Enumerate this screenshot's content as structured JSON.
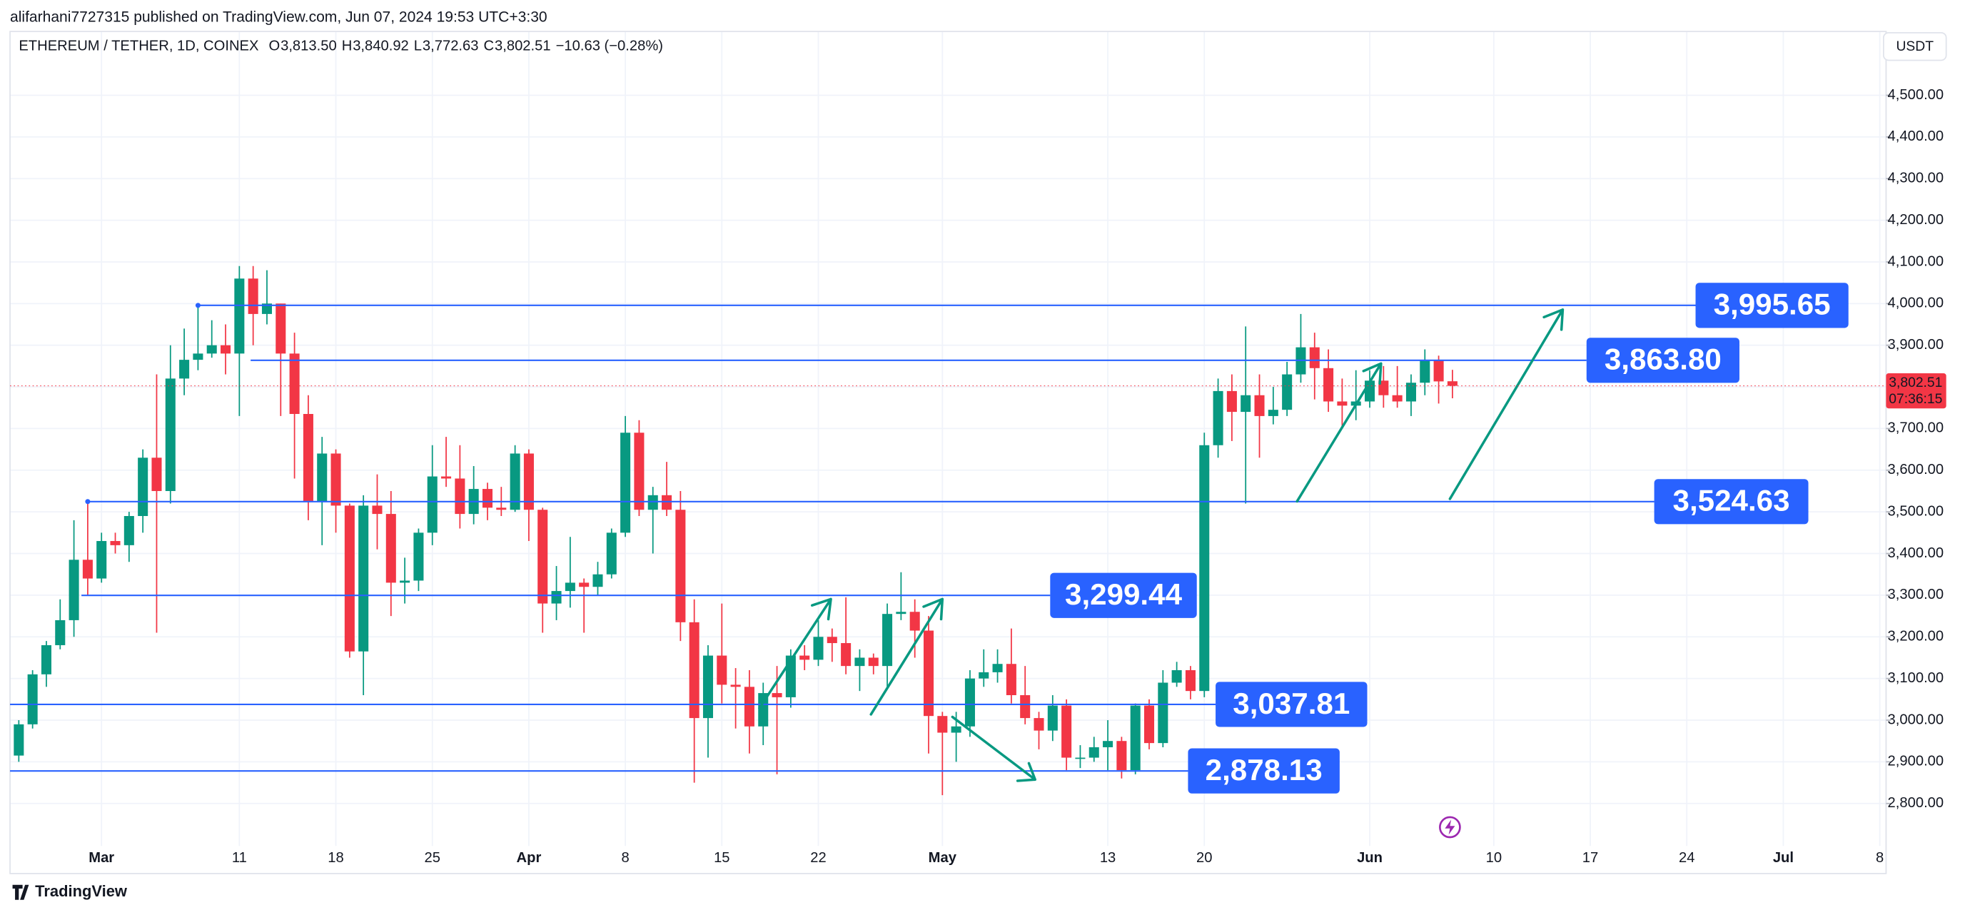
{
  "chart_data": {
    "type": "candlestick",
    "publisher_line": "alifarhani7727315 published on TradingView.com, Jun 07, 2024 19:53 UTC+3:30",
    "symbol": "ETHEREUM / TETHER, 1D, COINEX",
    "ohlc_legend": [
      {
        "key": "O",
        "value": "3,813.50"
      },
      {
        "key": "H",
        "value": "3,840.92"
      },
      {
        "key": "L",
        "value": "3,772.63"
      },
      {
        "key": "C",
        "value": "3,802.51"
      }
    ],
    "change": "−10.63 (−0.28%)",
    "currency": "USDT",
    "brand": "TradingView",
    "up_color": "#089981",
    "down_color": "#f23645",
    "x": [
      "2024-02-24",
      "2024-02-25",
      "2024-02-26",
      "2024-02-27",
      "2024-02-28",
      "2024-02-29",
      "2024-03-01",
      "2024-03-02",
      "2024-03-03",
      "2024-03-04",
      "2024-03-05",
      "2024-03-06",
      "2024-03-07",
      "2024-03-08",
      "2024-03-09",
      "2024-03-10",
      "2024-03-11",
      "2024-03-12",
      "2024-03-13",
      "2024-03-14",
      "2024-03-15",
      "2024-03-16",
      "2024-03-17",
      "2024-03-18",
      "2024-03-19",
      "2024-03-20",
      "2024-03-21",
      "2024-03-22",
      "2024-03-23",
      "2024-03-24",
      "2024-03-25",
      "2024-03-26",
      "2024-03-27",
      "2024-03-28",
      "2024-03-29",
      "2024-03-30",
      "2024-03-31",
      "2024-04-01",
      "2024-04-02",
      "2024-04-03",
      "2024-04-04",
      "2024-04-05",
      "2024-04-06",
      "2024-04-07",
      "2024-04-08",
      "2024-04-09",
      "2024-04-10",
      "2024-04-11",
      "2024-04-12",
      "2024-04-13",
      "2024-04-14",
      "2024-04-15",
      "2024-04-16",
      "2024-04-17",
      "2024-04-18",
      "2024-04-19",
      "2024-04-20",
      "2024-04-21",
      "2024-04-22",
      "2024-04-23",
      "2024-04-24",
      "2024-04-25",
      "2024-04-26",
      "2024-04-27",
      "2024-04-28",
      "2024-04-29",
      "2024-04-30",
      "2024-05-01",
      "2024-05-02",
      "2024-05-03",
      "2024-05-04",
      "2024-05-05",
      "2024-05-06",
      "2024-05-07",
      "2024-05-08",
      "2024-05-09",
      "2024-05-10",
      "2024-05-11",
      "2024-05-12",
      "2024-05-13",
      "2024-05-14",
      "2024-05-15",
      "2024-05-16",
      "2024-05-17",
      "2024-05-18",
      "2024-05-19",
      "2024-05-20",
      "2024-05-21",
      "2024-05-22",
      "2024-05-23",
      "2024-05-24",
      "2024-05-25",
      "2024-05-26",
      "2024-05-27",
      "2024-05-28",
      "2024-05-29",
      "2024-05-30",
      "2024-05-31",
      "2024-06-01",
      "2024-06-02",
      "2024-06-03",
      "2024-06-04",
      "2024-06-05",
      "2024-06-06",
      "2024-06-07"
    ],
    "open": [
      2915,
      2990,
      3110,
      3180,
      3240,
      3385,
      3340,
      3430,
      3420,
      3490,
      3630,
      3550,
      3820,
      3865,
      3880,
      3900,
      3880,
      4060,
      3975,
      4000,
      3880,
      3735,
      3525,
      3640,
      3515,
      3165,
      3515,
      3495,
      3330,
      3335,
      3450,
      3585,
      3580,
      3495,
      3555,
      3510,
      3505,
      3640,
      3505,
      3280,
      3310,
      3330,
      3320,
      3350,
      3450,
      3690,
      3505,
      3540,
      3505,
      3235,
      3005,
      3155,
      3085,
      3080,
      2985,
      3065,
      3055,
      3155,
      3145,
      3200,
      3185,
      3130,
      3150,
      3130,
      3255,
      3260,
      3215,
      3010,
      2970,
      2985,
      3100,
      3115,
      3135,
      3060,
      3005,
      2975,
      3035,
      2910,
      2910,
      2935,
      2950,
      2880,
      3035,
      2945,
      3090,
      3120,
      3070,
      3660,
      3790,
      3740,
      3780,
      3730,
      3745,
      3830,
      3895,
      3845,
      3765,
      3755,
      3765,
      3815,
      3780,
      3765,
      3810,
      3865,
      3813.5
    ],
    "high": [
      3000,
      3120,
      3190,
      3290,
      3480,
      3520,
      3450,
      3450,
      3500,
      3650,
      3830,
      3900,
      3940,
      3995,
      3960,
      3950,
      4090,
      4090,
      4080,
      4000,
      3930,
      3780,
      3680,
      3650,
      3520,
      3540,
      3590,
      3550,
      3390,
      3460,
      3660,
      3680,
      3660,
      3610,
      3570,
      3560,
      3660,
      3650,
      3510,
      3370,
      3440,
      3340,
      3380,
      3460,
      3730,
      3720,
      3560,
      3620,
      3550,
      3290,
      3180,
      3280,
      3125,
      3120,
      3090,
      3130,
      3170,
      3180,
      3240,
      3220,
      3295,
      3170,
      3160,
      3280,
      3355,
      3290,
      3250,
      3020,
      3020,
      3120,
      3170,
      3170,
      3220,
      3130,
      3020,
      3060,
      3050,
      2940,
      2960,
      3000,
      2960,
      3040,
      3050,
      3120,
      3140,
      3130,
      3690,
      3820,
      3830,
      3945,
      3830,
      3800,
      3860,
      3975,
      3930,
      3890,
      3820,
      3840,
      3840,
      3850,
      3850,
      3830,
      3890,
      3875,
      3840.92
    ],
    "low": [
      2900,
      2980,
      3080,
      3170,
      3200,
      3300,
      3330,
      3400,
      3380,
      3450,
      3210,
      3520,
      3780,
      3840,
      3870,
      3830,
      3730,
      3900,
      3950,
      3730,
      3580,
      3480,
      3420,
      3450,
      3150,
      3060,
      3410,
      3250,
      3280,
      3310,
      3420,
      3560,
      3460,
      3470,
      3480,
      3490,
      3500,
      3430,
      3210,
      3240,
      3270,
      3210,
      3300,
      3340,
      3440,
      3490,
      3400,
      3490,
      3190,
      2850,
      2910,
      3040,
      2980,
      2920,
      2940,
      2870,
      3030,
      3120,
      3130,
      3140,
      3110,
      3070,
      3110,
      3080,
      3240,
      3150,
      2920,
      2820,
      2900,
      2960,
      3080,
      3090,
      3040,
      2990,
      2930,
      2950,
      2880,
      2885,
      2900,
      2880,
      2860,
      2870,
      2930,
      2935,
      3080,
      3050,
      3055,
      3630,
      3670,
      3520,
      3630,
      3710,
      3730,
      3810,
      3770,
      3740,
      3700,
      3720,
      3750,
      3750,
      3750,
      3730,
      3780,
      3760,
      3772.63
    ],
    "close": [
      2990,
      3110,
      3180,
      3240,
      3385,
      3340,
      3430,
      3420,
      3490,
      3630,
      3550,
      3820,
      3865,
      3880,
      3900,
      3880,
      4060,
      3975,
      4000,
      3880,
      3735,
      3525,
      3640,
      3515,
      3165,
      3515,
      3495,
      3330,
      3335,
      3450,
      3585,
      3580,
      3495,
      3555,
      3510,
      3505,
      3640,
      3505,
      3280,
      3310,
      3330,
      3320,
      3350,
      3450,
      3690,
      3505,
      3540,
      3505,
      3235,
      3005,
      3155,
      3085,
      3080,
      2985,
      3065,
      3055,
      3155,
      3145,
      3200,
      3185,
      3130,
      3150,
      3130,
      3255,
      3260,
      3215,
      3010,
      2970,
      2985,
      3100,
      3115,
      3135,
      3060,
      3005,
      2975,
      3035,
      2910,
      2910,
      2935,
      2950,
      2880,
      3035,
      2945,
      3090,
      3120,
      3070,
      3660,
      3790,
      3740,
      3780,
      3730,
      3745,
      3830,
      3895,
      3845,
      3765,
      3755,
      3765,
      3815,
      3780,
      3765,
      3810,
      3865,
      3813.14,
      3802.51
    ],
    "last_price": {
      "value": 3802.51,
      "label": "3,802.51"
    },
    "countdown": "07:36:15",
    "annotations": [
      {
        "value": 3995.65,
        "label": "3,995.65"
      },
      {
        "value": 3863.8,
        "label": "3,863.80"
      },
      {
        "value": 3524.63,
        "label": "3,524.63"
      },
      {
        "value": 3299.44,
        "label": "3,299.44"
      },
      {
        "value": 3037.81,
        "label": "3,037.81"
      },
      {
        "value": 2878.13,
        "label": "2,878.13"
      }
    ],
    "annotation_color": "#2962ff",
    "arrow_color": "#089981",
    "xlim": [
      "2024-02-23",
      "2024-07-08"
    ],
    "xticks": [
      {
        "value": "2024-03-01",
        "label": "Mar"
      },
      {
        "value": "2024-03-11",
        "label": "11"
      },
      {
        "value": "2024-03-18",
        "label": "18"
      },
      {
        "value": "2024-03-25",
        "label": "25"
      },
      {
        "value": "2024-04-01",
        "label": "Apr"
      },
      {
        "value": "2024-04-08",
        "label": "8"
      },
      {
        "value": "2024-04-15",
        "label": "15"
      },
      {
        "value": "2024-04-22",
        "label": "22"
      },
      {
        "value": "2024-05-01",
        "label": "May"
      },
      {
        "value": "2024-05-13",
        "label": "13"
      },
      {
        "value": "2024-05-20",
        "label": "20"
      },
      {
        "value": "2024-06-01",
        "label": "Jun"
      },
      {
        "value": "2024-06-10",
        "label": "10"
      },
      {
        "value": "2024-06-17",
        "label": "17"
      },
      {
        "value": "2024-06-24",
        "label": "24"
      },
      {
        "value": "2024-07-01",
        "label": "Jul"
      },
      {
        "value": "2024-07-08",
        "label": "8"
      }
    ],
    "ylim": [
      2698,
      4584
    ],
    "yticks": [
      {
        "value": 2800,
        "label": "2,800.00"
      },
      {
        "value": 2900,
        "label": "2,900.00"
      },
      {
        "value": 3000,
        "label": "3,000.00"
      },
      {
        "value": 3100,
        "label": "3,100.00"
      },
      {
        "value": 3200,
        "label": "3,200.00"
      },
      {
        "value": 3300,
        "label": "3,300.00"
      },
      {
        "value": 3400,
        "label": "3,400.00"
      },
      {
        "value": 3500,
        "label": "3,500.00"
      },
      {
        "value": 3600,
        "label": "3,600.00"
      },
      {
        "value": 3700,
        "label": "3,700.00"
      },
      {
        "value": 3800,
        "label": "3,800.00"
      },
      {
        "value": 3900,
        "label": "3,900.00"
      },
      {
        "value": 4000,
        "label": "4,000.00"
      },
      {
        "value": 4100,
        "label": "4,100.00"
      },
      {
        "value": 4200,
        "label": "4,200.00"
      },
      {
        "value": 4300,
        "label": "4,300.00"
      },
      {
        "value": 4400,
        "label": "4,400.00"
      },
      {
        "value": 4500,
        "label": "4,500.00"
      }
    ],
    "grid": true
  }
}
